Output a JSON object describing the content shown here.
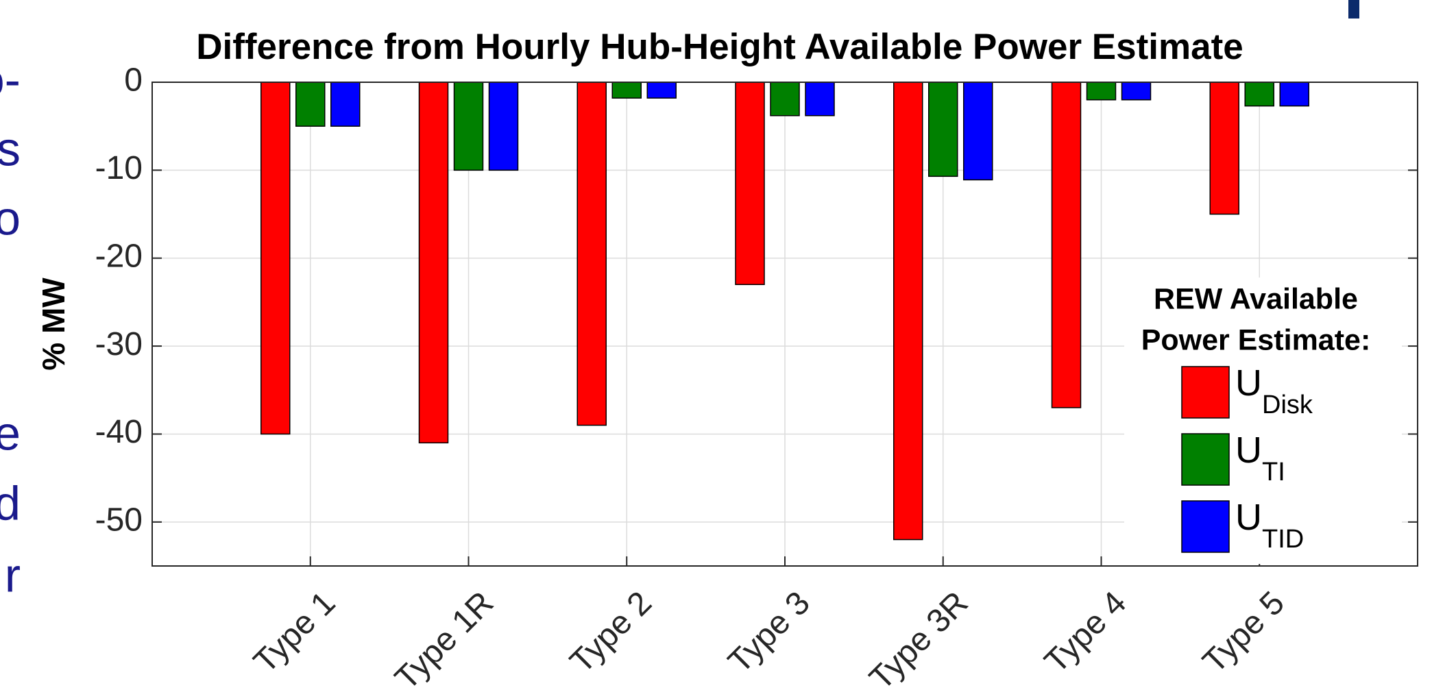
{
  "chart_data": {
    "type": "bar",
    "title": "Difference from Hourly Hub-Height Available Power Estimate",
    "y_label": "% MW",
    "legend_title": [
      "REW Available",
      "Power Estimate:"
    ],
    "legend": "right",
    "categories": [
      "Type 1",
      "Type 1R",
      "Type 2",
      "Type 3",
      "Type 3R",
      "Type 4",
      "Type 5"
    ],
    "series": [
      {
        "name": "UDisk",
        "color": "#ff0000",
        "values": [
          -40,
          -41,
          -39,
          -23,
          -52,
          -37,
          -15
        ]
      },
      {
        "name": "UTI",
        "color": "#008000",
        "values": [
          -5,
          -10,
          -1.8,
          -3.8,
          -10.7,
          -2,
          -2.7
        ]
      },
      {
        "name": "UTID",
        "color": "#0000ff",
        "values": [
          -5,
          -10,
          -1.8,
          -3.8,
          -11.1,
          -2,
          -2.7
        ]
      }
    ],
    "ylim": [
      -55,
      0
    ],
    "yticks": [
      0,
      -10,
      -20,
      -30,
      -40,
      -50
    ],
    "grid": true
  },
  "side_text": [
    "o-",
    "s",
    "o",
    "e",
    "d",
    "r"
  ]
}
